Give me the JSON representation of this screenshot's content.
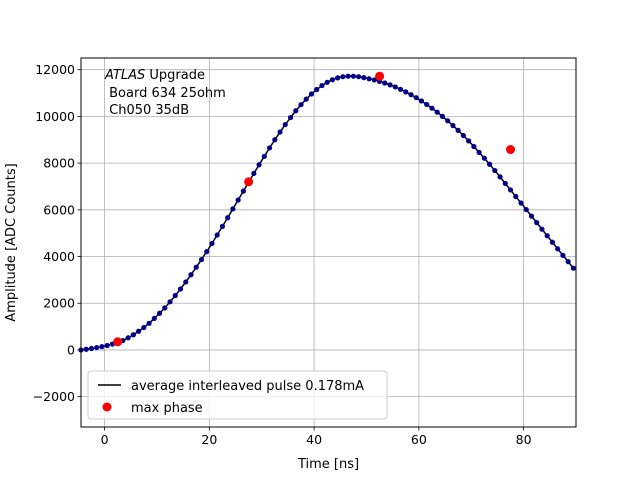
{
  "chart_data": {
    "type": "scatter",
    "title": "",
    "xlabel": "Time [ns]",
    "ylabel": "Amplitude [ADC Counts]",
    "xlim": [
      -4.5,
      90
    ],
    "ylim": [
      -3300,
      12500
    ],
    "xticks": [
      0,
      20,
      40,
      60,
      80
    ],
    "yticks": [
      -2000,
      0,
      2000,
      4000,
      6000,
      8000,
      10000,
      12000
    ],
    "tick_labels": {
      "x": [
        "0",
        "20",
        "40",
        "60",
        "80"
      ],
      "y": [
        "−2000",
        "0",
        "2000",
        "4000",
        "6000",
        "8000",
        "10000",
        "12000"
      ]
    },
    "grid": true,
    "legend_position": "lower-left",
    "annotation": {
      "italic": "ATLAS",
      "line1_rest": " Upgrade",
      "line2": " Board 634 25ohm",
      "line3": " Ch050 35dB"
    },
    "series": [
      {
        "name": "average interleaved pulse 0.178mA",
        "legend_style": "line",
        "legend_color": "#000000",
        "color": "#00008b",
        "marker": "point",
        "x": [
          -4.5,
          -3.5,
          -2.5,
          -1.5,
          -0.5,
          0.5,
          1.5,
          2.5,
          3.5,
          4.5,
          5.5,
          6.5,
          7.5,
          8.5,
          9.5,
          10.5,
          11.5,
          12.5,
          13.5,
          14.5,
          15.5,
          16.5,
          17.5,
          18.5,
          19.5,
          20.5,
          21.5,
          22.5,
          23.5,
          24.5,
          25.5,
          26.5,
          27.5,
          28.5,
          29.5,
          30.5,
          31.5,
          32.5,
          33.5,
          34.5,
          35.5,
          36.5,
          37.5,
          38.5,
          39.5,
          40.5,
          41.5,
          42.5,
          43.5,
          44.5,
          45.5,
          46.5,
          47.5,
          48.5,
          49.5,
          50.5,
          51.5,
          52.5,
          53.5,
          54.5,
          55.5,
          56.5,
          57.5,
          58.5,
          59.5,
          60.5,
          61.5,
          62.5,
          63.5,
          64.5,
          65.5,
          66.5,
          67.5,
          68.5,
          69.5,
          70.5,
          71.5,
          72.5,
          73.5,
          74.5,
          75.5,
          76.5,
          77.5,
          78.5,
          79.5,
          80.5,
          81.5,
          82.5,
          83.5,
          84.5,
          85.5,
          86.5,
          87.5,
          88.5,
          89.5
        ],
        "y": [
          0,
          30,
          60,
          100,
          140,
          190,
          250,
          320,
          400,
          520,
          650,
          800,
          960,
          1140,
          1350,
          1570,
          1800,
          2060,
          2330,
          2610,
          2910,
          3220,
          3540,
          3870,
          4210,
          4560,
          4920,
          5290,
          5660,
          6040,
          6420,
          6800,
          7180,
          7560,
          7930,
          8290,
          8650,
          9000,
          9330,
          9650,
          9950,
          10240,
          10500,
          10740,
          10960,
          11150,
          11320,
          11460,
          11570,
          11650,
          11700,
          11720,
          11720,
          11700,
          11660,
          11610,
          11560,
          11500,
          11430,
          11350,
          11260,
          11160,
          11050,
          10930,
          10800,
          10660,
          10510,
          10350,
          10180,
          10000,
          9810,
          9610,
          9400,
          9180,
          8950,
          8710,
          8460,
          8210,
          7950,
          7680,
          7410,
          7130,
          6850,
          6570,
          6290,
          6010,
          5730,
          5450,
          5170,
          4890,
          4610,
          4330,
          4050,
          3780,
          3500
        ],
        "y_note": ""
      },
      {
        "name": "max phase",
        "legend_style": "marker",
        "color": "#ff0000",
        "marker": "circle",
        "x": [
          2.5,
          27.5,
          52.5,
          77.5
        ],
        "y": [
          350,
          7200,
          11720,
          8580
        ]
      }
    ]
  }
}
